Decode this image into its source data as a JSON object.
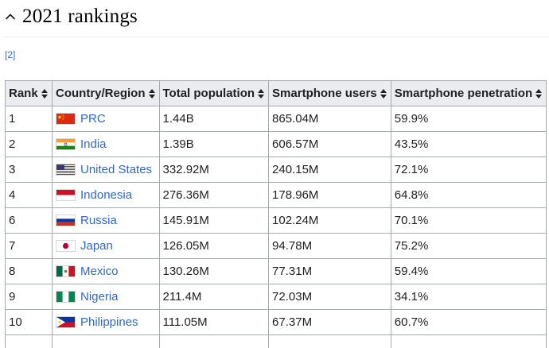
{
  "section": {
    "title": "2021 rankings",
    "citation": "[2]"
  },
  "table": {
    "headers": [
      "Rank",
      "Country/Region",
      "Total population",
      "Smartphone users",
      "Smartphone penetration"
    ],
    "rows": [
      {
        "rank": "1",
        "country": "PRC",
        "flag": "flag-china-icon",
        "population": "1.44B",
        "users": "865.04M",
        "penetration": "59.9%"
      },
      {
        "rank": "2",
        "country": "India",
        "flag": "flag-india-icon",
        "population": "1.39B",
        "users": "606.57M",
        "penetration": "43.5%"
      },
      {
        "rank": "3",
        "country": "United States",
        "flag": "flag-usa-icon",
        "population": "332.92M",
        "users": "240.15M",
        "penetration": "72.1%"
      },
      {
        "rank": "4",
        "country": "Indonesia",
        "flag": "flag-indonesia-icon",
        "population": "276.36M",
        "users": "178.96M",
        "penetration": "64.8%"
      },
      {
        "rank": "6",
        "country": "Russia",
        "flag": "flag-russia-icon",
        "population": "145.91M",
        "users": "102.24M",
        "penetration": "70.1%"
      },
      {
        "rank": "7",
        "country": "Japan",
        "flag": "flag-japan-icon",
        "population": "126.05M",
        "users": "94.78M",
        "penetration": "75.2%"
      },
      {
        "rank": "8",
        "country": "Mexico",
        "flag": "flag-mexico-icon",
        "population": "130.26M",
        "users": "77.31M",
        "penetration": "59.4%"
      },
      {
        "rank": "9",
        "country": "Nigeria",
        "flag": "flag-nigeria-icon",
        "population": "211.4M",
        "users": "72.03M",
        "penetration": "34.1%"
      },
      {
        "rank": "10",
        "country": "Philippines",
        "flag": "flag-philippines-icon",
        "population": "111.05M",
        "users": "67.37M",
        "penetration": "60.7%"
      },
      {
        "rank": "",
        "country": "",
        "flag": "",
        "population": "",
        "users": "",
        "penetration": ""
      }
    ]
  },
  "colors": {
    "link": "#3366cc",
    "header_bg": "#eaecf0",
    "border": "#a2a9b1"
  }
}
